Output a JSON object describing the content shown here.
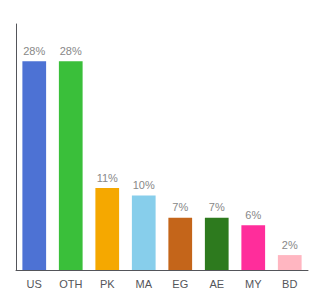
{
  "chart_data": {
    "type": "bar",
    "categories": [
      "US",
      "OTH",
      "PK",
      "MA",
      "EG",
      "AE",
      "MY",
      "BD"
    ],
    "values": [
      28,
      28,
      11,
      10,
      7,
      7,
      6,
      2
    ],
    "value_labels": [
      "28%",
      "28%",
      "11%",
      "10%",
      "7%",
      "7%",
      "6%",
      "2%"
    ],
    "colors": [
      "#4d72d4",
      "#3abf3a",
      "#f5a800",
      "#87ceeb",
      "#c4651a",
      "#2d7a1e",
      "#ff2d9b",
      "#ffb6c1"
    ],
    "ylim": [
      0,
      33
    ],
    "grid": false,
    "data_labels": true,
    "tick_labels": "x"
  }
}
